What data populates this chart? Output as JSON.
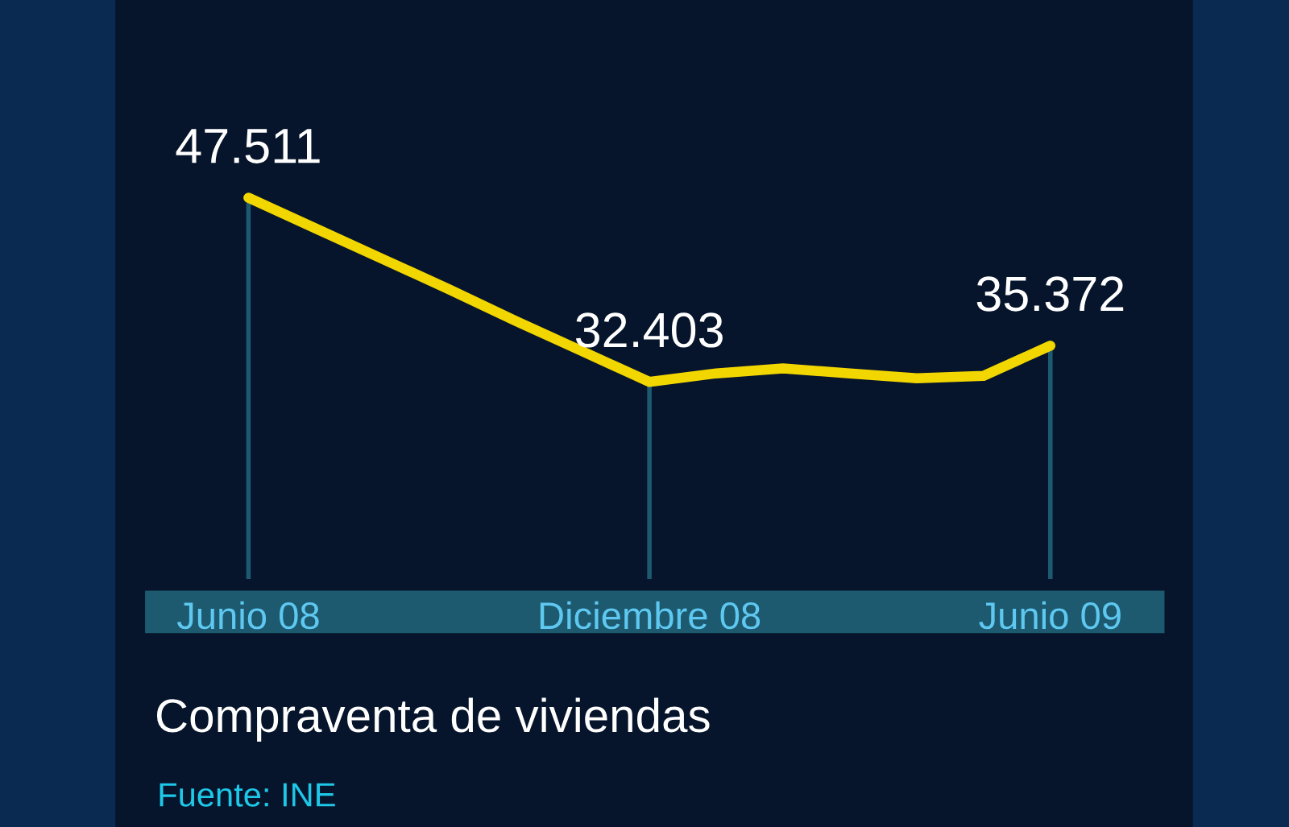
{
  "chart_data": {
    "type": "line",
    "title": "Compraventa de viviendas",
    "annotations": [
      "Fuente: INE"
    ],
    "categories": [
      "Junio 08",
      null,
      null,
      null,
      null,
      null,
      "Diciembre 08",
      null,
      null,
      null,
      null,
      null,
      "Junio 09"
    ],
    "tick_labels": "x",
    "series": [
      {
        "color": "#f2d600",
        "values": [
          47511,
          45000,
          42500,
          40000,
          37400,
          34900,
          32403,
          33100,
          33500,
          33100,
          32700,
          32900,
          35372
        ],
        "value_labels": [
          "47.511",
          null,
          null,
          null,
          null,
          null,
          "32.403",
          null,
          null,
          null,
          null,
          null,
          "35.372"
        ]
      }
    ],
    "grid": "x",
    "legend": false,
    "line_style": "solid"
  }
}
